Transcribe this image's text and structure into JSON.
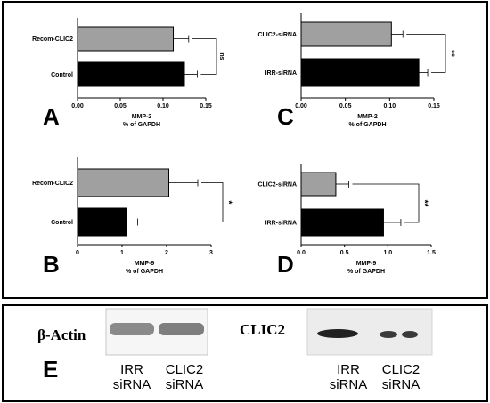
{
  "chart_data": [
    {
      "type": "bar",
      "orientation": "horizontal",
      "panel": "A",
      "categories": [
        "Recom-CLIC2",
        "Control"
      ],
      "values": [
        0.112,
        0.125
      ],
      "errors": [
        0.018,
        0.015
      ],
      "colors": [
        "#a0a0a0",
        "#000000"
      ],
      "xticks": [
        "0.00",
        "0.05",
        "0.10",
        "0.15"
      ],
      "xlim": [
        0,
        0.15
      ],
      "xlabel_line1": "MMP-2",
      "xlabel_line2": "% of GAPDH",
      "significance": "ns"
    },
    {
      "type": "bar",
      "orientation": "horizontal",
      "panel": "C",
      "categories": [
        "CLIC2-siRNA",
        "IRR-siRNA"
      ],
      "values": [
        0.102,
        0.133
      ],
      "errors": [
        0.013,
        0.01
      ],
      "colors": [
        "#a0a0a0",
        "#000000"
      ],
      "xticks": [
        "0.00",
        "0.05",
        "0.10",
        "0.15"
      ],
      "xlim": [
        0,
        0.15
      ],
      "xlabel_line1": "MMP-2",
      "xlabel_line2": "% of GAPDH",
      "significance": "**"
    },
    {
      "type": "bar",
      "orientation": "horizontal",
      "panel": "B",
      "categories": [
        "Recom-CLIC2",
        "Control"
      ],
      "values": [
        2.05,
        1.1
      ],
      "errors": [
        0.65,
        0.25
      ],
      "colors": [
        "#a0a0a0",
        "#000000"
      ],
      "xticks": [
        "0",
        "1",
        "2",
        "3"
      ],
      "xlim": [
        0,
        3
      ],
      "xlabel_line1": "MMP-9",
      "xlabel_line2": "% of GAPDH",
      "significance": "*"
    },
    {
      "type": "bar",
      "orientation": "horizontal",
      "panel": "D",
      "categories": [
        "CLIC2-siRNA",
        "IRR-siRNA"
      ],
      "values": [
        0.4,
        0.95
      ],
      "errors": [
        0.15,
        0.2
      ],
      "colors": [
        "#a0a0a0",
        "#000000"
      ],
      "xticks": [
        "0.0",
        "0.5",
        "1.0",
        "1.5"
      ],
      "xlim": [
        0,
        1.5
      ],
      "xlabel_line1": "MMP-9",
      "xlabel_line2": "% of GAPDH",
      "significance": "**"
    }
  ],
  "blots": {
    "panel": "E",
    "actin": {
      "title": "β-Actin",
      "lane1": [
        "IRR",
        "siRNA"
      ],
      "lane2": [
        "CLIC2",
        "siRNA"
      ]
    },
    "clic2": {
      "title": "CLIC2",
      "lane1": [
        "IRR",
        "siRNA"
      ],
      "lane2": [
        "CLIC2",
        "siRNA"
      ]
    }
  }
}
